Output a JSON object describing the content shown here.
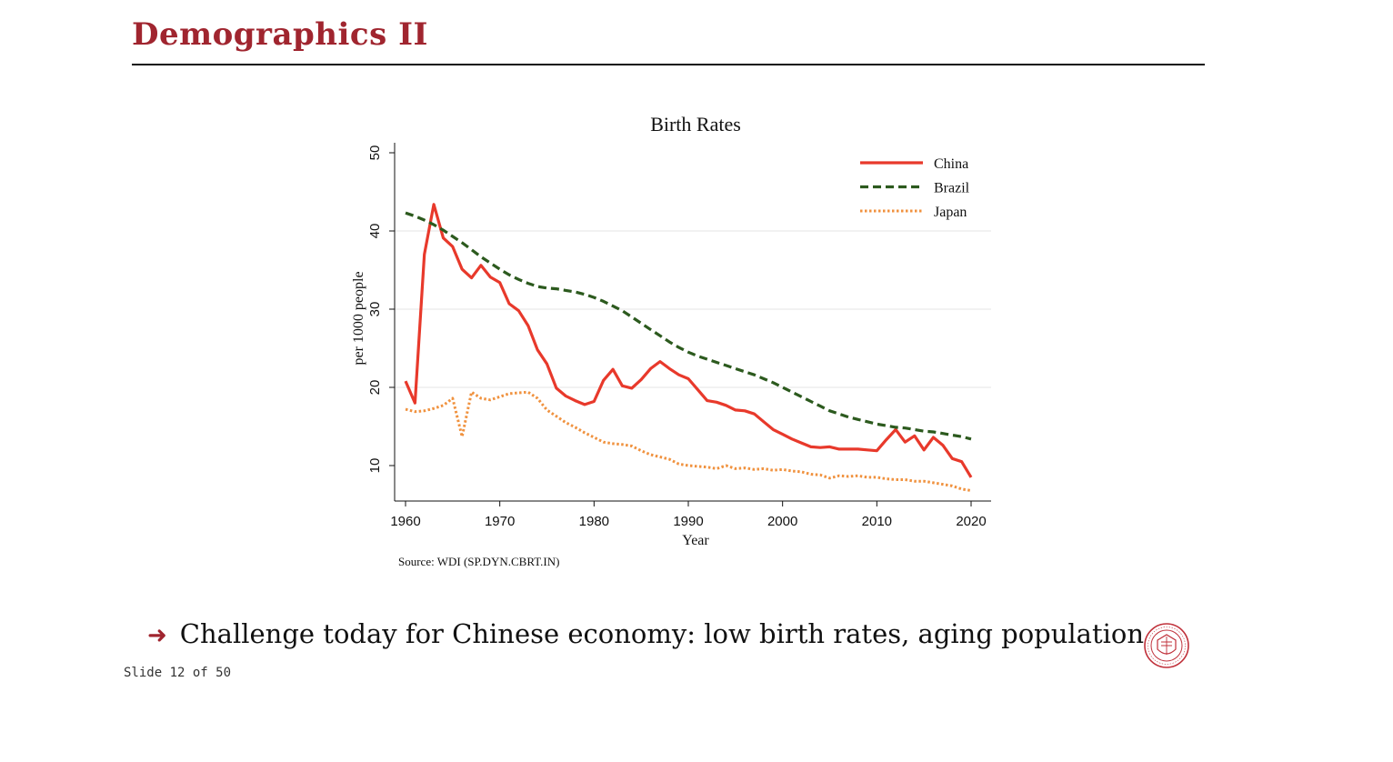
{
  "slide": {
    "title": "Demographics II",
    "bullet": "Challenge today for Chinese economy: low birth rates, aging population",
    "bullet_arrow": "➜",
    "footer": "Slide 12 of 50",
    "seal_text": "CARNEGIE MELLON UNIVERSITY · PITTSBURGH PENNSYLVANIA 1900",
    "accent_color": "#a0252f"
  },
  "chart_data": {
    "type": "line",
    "title": "Birth Rates",
    "xlabel": "Year",
    "ylabel": "per 1000 people",
    "source": "Source: WDI (SP.DYN.CBRT.IN)",
    "xlim": [
      1959,
      2022
    ],
    "ylim": [
      5,
      51
    ],
    "xticks": [
      1960,
      1970,
      1980,
      1990,
      2000,
      2010,
      2020
    ],
    "yticks": [
      10,
      20,
      30,
      40,
      50
    ],
    "grid": true,
    "legend_position": "top-right",
    "x": [
      1960,
      1961,
      1962,
      1963,
      1964,
      1965,
      1966,
      1967,
      1968,
      1969,
      1970,
      1971,
      1972,
      1973,
      1974,
      1975,
      1976,
      1977,
      1978,
      1979,
      1980,
      1981,
      1982,
      1983,
      1984,
      1985,
      1986,
      1987,
      1988,
      1989,
      1990,
      1991,
      1992,
      1993,
      1994,
      1995,
      1996,
      1997,
      1998,
      1999,
      2000,
      2001,
      2002,
      2003,
      2004,
      2005,
      2006,
      2007,
      2008,
      2009,
      2010,
      2011,
      2012,
      2013,
      2014,
      2015,
      2016,
      2017,
      2018,
      2019,
      2020
    ],
    "series": [
      {
        "name": "China",
        "color": "#e8392b",
        "dash": "solid",
        "values": [
          20.8,
          18.0,
          37.0,
          43.4,
          39.1,
          38.0,
          35.1,
          34.0,
          35.6,
          34.1,
          33.4,
          30.7,
          29.8,
          27.9,
          24.8,
          23.0,
          19.9,
          18.9,
          18.3,
          17.8,
          18.2,
          20.9,
          22.3,
          20.2,
          19.9,
          21.0,
          22.4,
          23.3,
          22.4,
          21.6,
          21.1,
          19.7,
          18.3,
          18.1,
          17.7,
          17.1,
          17.0,
          16.6,
          15.6,
          14.6,
          14.0,
          13.4,
          12.9,
          12.4,
          12.3,
          12.4,
          12.1,
          12.1,
          12.1,
          12.0,
          11.9,
          13.3,
          14.6,
          13.0,
          13.8,
          12.0,
          13.6,
          12.6,
          10.9,
          10.5,
          8.5
        ]
      },
      {
        "name": "Brazil",
        "color": "#2c5a1e",
        "dash": "dashed",
        "values": [
          42.3,
          41.9,
          41.4,
          40.8,
          40.1,
          39.3,
          38.5,
          37.6,
          36.7,
          35.9,
          35.1,
          34.4,
          33.8,
          33.3,
          32.9,
          32.7,
          32.6,
          32.4,
          32.2,
          31.9,
          31.5,
          31.0,
          30.4,
          29.8,
          29.0,
          28.2,
          27.4,
          26.6,
          25.8,
          25.1,
          24.5,
          24.0,
          23.6,
          23.2,
          22.8,
          22.4,
          22.0,
          21.6,
          21.1,
          20.6,
          20.0,
          19.4,
          18.8,
          18.2,
          17.6,
          17.0,
          16.6,
          16.2,
          15.9,
          15.6,
          15.3,
          15.1,
          14.9,
          14.8,
          14.6,
          14.4,
          14.3,
          14.1,
          13.9,
          13.7,
          13.4
        ]
      },
      {
        "name": "Japan",
        "color": "#f0923f",
        "dash": "dotted",
        "values": [
          17.2,
          16.9,
          17.0,
          17.3,
          17.7,
          18.6,
          13.7,
          19.4,
          18.6,
          18.4,
          18.8,
          19.2,
          19.3,
          19.4,
          18.6,
          17.1,
          16.3,
          15.5,
          14.9,
          14.2,
          13.6,
          13.0,
          12.8,
          12.7,
          12.5,
          11.9,
          11.4,
          11.1,
          10.8,
          10.2,
          10.0,
          9.9,
          9.8,
          9.6,
          10.0,
          9.6,
          9.7,
          9.5,
          9.6,
          9.4,
          9.5,
          9.3,
          9.2,
          8.9,
          8.8,
          8.4,
          8.7,
          8.6,
          8.7,
          8.5,
          8.5,
          8.3,
          8.2,
          8.2,
          8.0,
          8.0,
          7.8,
          7.6,
          7.4,
          7.0,
          6.8
        ]
      }
    ]
  }
}
